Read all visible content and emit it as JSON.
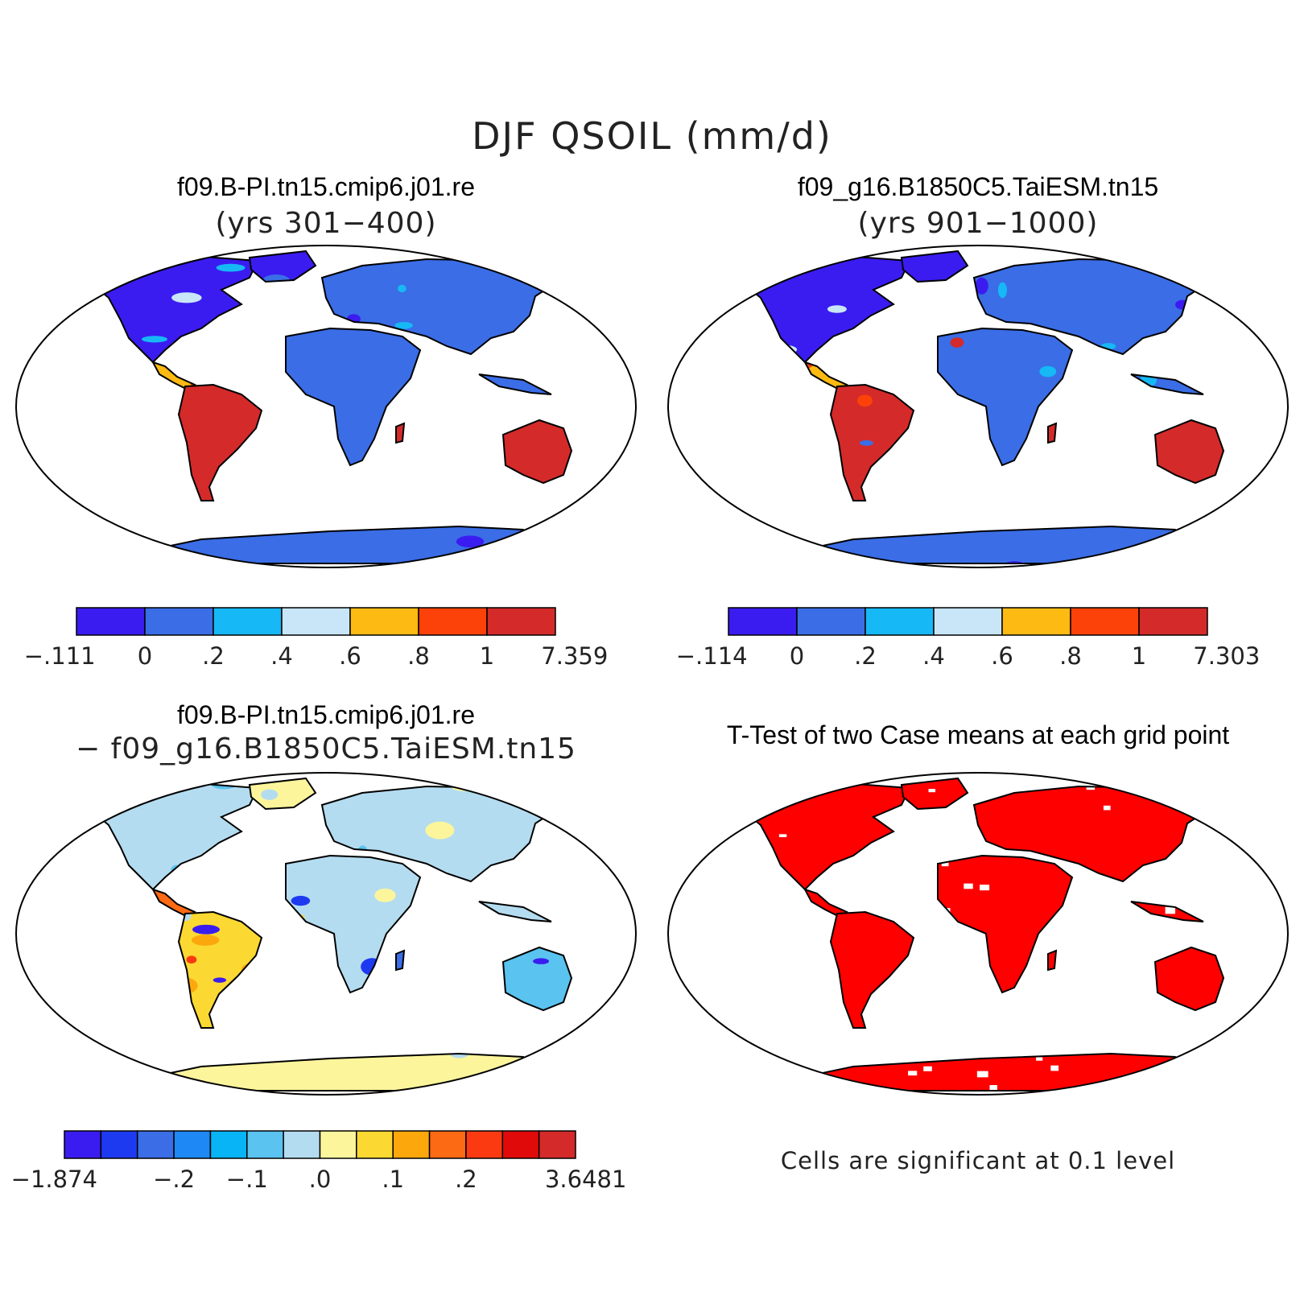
{
  "figure": {
    "title": "DJF QSOIL (mm/d)"
  },
  "panels": [
    {
      "id": "case1",
      "title": "f09.B-PI.tn15.cmip6.j01.re",
      "subtitle": "(yrs 301−400)",
      "colorbar": {
        "colors": [
          "#3a1cf0",
          "#3a6de6",
          "#16b8f5",
          "#c8e6f7",
          "#fcba12",
          "#fc4208",
          "#d42a2a"
        ],
        "labels": [
          "−.111",
          "0",
          ".2",
          ".4",
          ".6",
          ".8",
          "1",
          "7.359"
        ]
      }
    },
    {
      "id": "case2",
      "title": "f09_g16.B1850C5.TaiESM.tn15",
      "subtitle": "(yrs 901−1000)",
      "colorbar": {
        "colors": [
          "#3a1cf0",
          "#3a6de6",
          "#16b8f5",
          "#c8e6f7",
          "#fcba12",
          "#fc4208",
          "#d42a2a"
        ],
        "labels": [
          "−.114",
          "0",
          ".2",
          ".4",
          ".6",
          ".8",
          "1",
          "7.303"
        ]
      }
    },
    {
      "id": "difference",
      "title": "f09.B-PI.tn15.cmip6.j01.re",
      "subtitle": "− f09_g16.B1850C5.TaiESM.tn15",
      "colorbar": {
        "colors": [
          "#3a1cf0",
          "#1e3af0",
          "#3a6de6",
          "#1e88f5",
          "#08b4f5",
          "#5ac3f0",
          "#b4dcf0",
          "#fcf59c",
          "#fcd832",
          "#fca80c",
          "#fc6a14",
          "#fc3a12",
          "#e00a0a",
          "#d42a2a"
        ],
        "labels": [
          "−1.874",
          "−.2",
          "−.1",
          ".0",
          ".1",
          ".2",
          "3.6481"
        ]
      }
    },
    {
      "id": "ttest",
      "title": "T-Test of two Case means at each grid point",
      "note": "Cells are significant at 0.1 level",
      "significant_color": "#ff0000"
    }
  ]
}
